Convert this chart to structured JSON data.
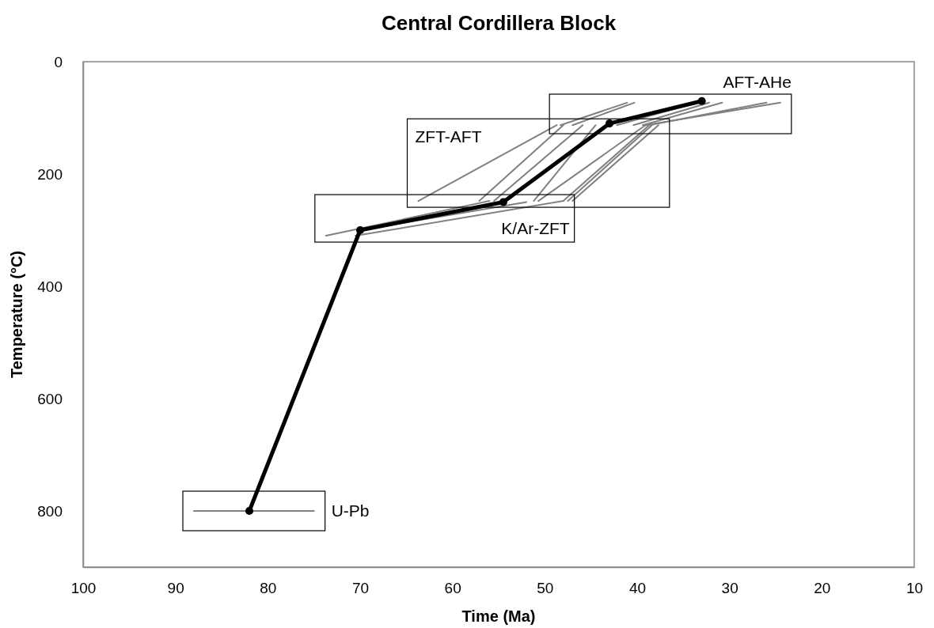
{
  "chart_data": {
    "type": "line",
    "title": "Central Cordillera Block",
    "xlabel": "Time (Ma)",
    "ylabel": "Temperature (°C)",
    "xlim": [
      100,
      10
    ],
    "xticks": [
      100,
      90,
      80,
      70,
      60,
      50,
      40,
      30,
      20,
      10
    ],
    "ylim": [
      900,
      0
    ],
    "yticks": [
      0,
      200,
      400,
      600,
      800
    ],
    "grid": false,
    "series": [
      {
        "color": "#808080",
        "x": [
          88,
          75
        ],
        "values": [
          800,
          800
        ]
      },
      {
        "color": "#808080",
        "x": [
          73.7,
          56
        ],
        "values": [
          310,
          248
        ]
      },
      {
        "color": "#808080",
        "x": [
          70.5,
          48
        ],
        "values": [
          310,
          248
        ]
      },
      {
        "color": "#808080",
        "x": [
          70,
          52
        ],
        "values": [
          300,
          250
        ]
      },
      {
        "color": "#808080",
        "x": [
          63.7,
          48.7
        ],
        "values": [
          248,
          113
        ]
      },
      {
        "color": "#808080",
        "x": [
          57.1,
          48
        ],
        "values": [
          248,
          113
        ]
      },
      {
        "color": "#808080",
        "x": [
          55.5,
          45.9
        ],
        "values": [
          248,
          113
        ]
      },
      {
        "color": "#808080",
        "x": [
          51.2,
          44.5
        ],
        "values": [
          248,
          113
        ]
      },
      {
        "color": "#808080",
        "x": [
          50.7,
          39.1
        ],
        "values": [
          248,
          113
        ]
      },
      {
        "color": "#808080",
        "x": [
          48,
          38.7
        ],
        "values": [
          248,
          113
        ]
      },
      {
        "color": "#808080",
        "x": [
          47.5,
          38.4
        ],
        "values": [
          248,
          113
        ]
      },
      {
        "color": "#808080",
        "x": [
          47,
          37.7
        ],
        "values": [
          248,
          113
        ]
      },
      {
        "color": "#808080",
        "x": [
          48.3,
          41.1
        ],
        "values": [
          113,
          73
        ]
      },
      {
        "color": "#808080",
        "x": [
          47,
          40.3
        ],
        "values": [
          113,
          73
        ]
      },
      {
        "color": "#808080",
        "x": [
          42.2,
          33.6
        ],
        "values": [
          113,
          73
        ]
      },
      {
        "color": "#808080",
        "x": [
          40.4,
          32.2
        ],
        "values": [
          113,
          73
        ]
      },
      {
        "color": "#808080",
        "x": [
          39.4,
          30.8
        ],
        "values": [
          113,
          73
        ]
      },
      {
        "color": "#808080",
        "x": [
          38.7,
          26
        ],
        "values": [
          113,
          73
        ]
      },
      {
        "color": "#808080",
        "x": [
          39.1,
          24.5
        ],
        "values": [
          113,
          73
        ]
      },
      {
        "color": "#000000",
        "marker": "circle",
        "x": [
          82,
          70,
          54.5,
          43,
          33
        ],
        "values": [
          800,
          300,
          250,
          110,
          70
        ]
      }
    ],
    "annotations": [
      "U-Pb",
      "K/Ar-ZFT",
      "ZFT-AFT",
      "AFT-AHe"
    ]
  }
}
